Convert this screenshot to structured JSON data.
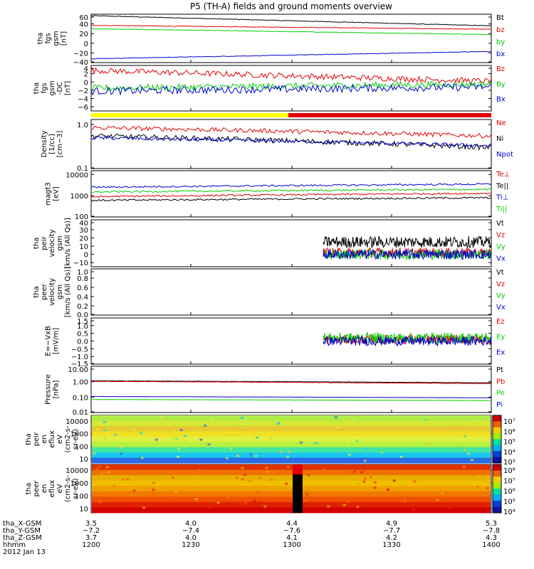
{
  "title": "P5 (TH-A) fields and ground moments overview",
  "colors": {
    "black": "#000000",
    "red": "#e00000",
    "green": "#00d000",
    "blue": "#0000d0",
    "yellow": "#ffff00",
    "white": "#ffffff"
  },
  "chart_data": [
    {
      "type": "line",
      "ylabel": [
        "tha",
        "fgs",
        "gsm",
        "[nT]"
      ],
      "yticks": [
        "60",
        "40",
        "20",
        "0",
        "−20",
        "−40"
      ],
      "ylim": [
        -40,
        60
      ],
      "series": [
        {
          "name": "Bt",
          "color": "black",
          "start": 57,
          "end": 36,
          "noise": 0.6
        },
        {
          "name": "bz",
          "color": "red",
          "start": 37,
          "end": 29,
          "noise": 0.6
        },
        {
          "name": "by",
          "color": "green",
          "start": 30,
          "end": 18,
          "noise": 0.6
        },
        {
          "name": "bx",
          "color": "blue",
          "start": -32,
          "end": -17,
          "noise": 0.6
        }
      ]
    },
    {
      "type": "line",
      "ylabel": [
        "tha",
        "fgs",
        "gsm",
        "-DC",
        "[nT]"
      ],
      "yticks": [
        "4",
        "2",
        "0",
        "−2",
        "−4",
        "−6"
      ],
      "ylim": [
        -7,
        4
      ],
      "series": [
        {
          "name": "Bz",
          "color": "red",
          "start": 2.8,
          "end": 0.2,
          "noise": 0.7
        },
        {
          "name": "By",
          "color": "green",
          "start": -1.5,
          "end": -0.5,
          "noise": 0.8
        },
        {
          "name": "Bx",
          "color": "blue",
          "start": -2.2,
          "end": -1.2,
          "noise": 0.9
        }
      ]
    },
    {
      "type": "line",
      "scale": "log",
      "ylabel": [
        "Density",
        "[1/cc]",
        "[cm−3]"
      ],
      "yticks": [
        "1.0",
        "0.1"
      ],
      "ylim": [
        0.1,
        1.3
      ],
      "series": [
        {
          "name": "Ne",
          "color": "red",
          "start": 0.85,
          "end": 0.55,
          "noise": 0.05
        },
        {
          "name": "Ni",
          "color": "black",
          "start": 0.55,
          "end": 0.3,
          "noise": 0.06
        },
        {
          "name": "Npot",
          "color": "blue",
          "start": 0.5,
          "end": 0.33,
          "noise": 0.04
        }
      ]
    },
    {
      "type": "line",
      "scale": "log",
      "ylabel": [
        "magt3",
        "[eV]"
      ],
      "yticks": [
        "10000",
        "1000",
        "100"
      ],
      "ylim": [
        100,
        15000
      ],
      "series": [
        {
          "name": "Te⊥",
          "color": "red",
          "start": 900,
          "end": 1300,
          "noise": 0.04
        },
        {
          "name": "Te||",
          "color": "black",
          "start": 600,
          "end": 800,
          "noise": 0.04
        },
        {
          "name": "Ti⊥",
          "color": "blue",
          "start": 2500,
          "end": 3500,
          "noise": 0.04
        },
        {
          "name": "Ti||",
          "color": "green",
          "start": 1500,
          "end": 2000,
          "noise": 0.04
        }
      ]
    },
    {
      "type": "line",
      "ylabel": [
        "tha",
        "peir",
        "velocity",
        "gsm",
        "[km/s (All Qs)]"
      ],
      "yticks": [
        "40",
        "30",
        "20",
        "10",
        "0",
        "−10"
      ],
      "ylim": [
        -15,
        42
      ],
      "start_frac": 0.58,
      "series": [
        {
          "name": "Vt",
          "color": "black",
          "start": 15,
          "end": 15,
          "noise": 7
        },
        {
          "name": "Vz",
          "color": "red",
          "start": 2,
          "end": 2,
          "noise": 6
        },
        {
          "name": "Vy",
          "color": "green",
          "start": 0,
          "end": 0,
          "noise": 6
        },
        {
          "name": "Vx",
          "color": "blue",
          "start": 0,
          "end": 0,
          "noise": 6
        }
      ]
    },
    {
      "type": "line",
      "ylabel": [
        "tha",
        "peer",
        "velocity",
        "gsm",
        "[km/s (All Qs)]"
      ],
      "yticks": [
        "1.0",
        "0.8",
        "0.6",
        "0.4",
        "0.2",
        "0.0"
      ],
      "ylim": [
        0,
        1
      ],
      "series": [
        {
          "name": "Vt",
          "color": "black"
        },
        {
          "name": "Vz",
          "color": "red"
        },
        {
          "name": "Vy",
          "color": "green"
        },
        {
          "name": "Vx",
          "color": "blue"
        }
      ]
    },
    {
      "type": "line",
      "ylabel": [
        "E=−VxB",
        "[mV/m]"
      ],
      "yticks": [
        "1.5",
        "1.0",
        "0.5",
        "0.0",
        "−0.5",
        "−1.0",
        "−1.5"
      ],
      "ylim": [
        -1.5,
        1.5
      ],
      "start_frac": 0.58,
      "series": [
        {
          "name": "Ez",
          "color": "red",
          "start": 0.1,
          "end": 0.1,
          "noise": 0.3
        },
        {
          "name": "Ey",
          "color": "green",
          "start": 0.2,
          "end": 0.2,
          "noise": 0.35
        },
        {
          "name": "Ex",
          "color": "blue",
          "start": 0,
          "end": 0,
          "noise": 0.3
        }
      ]
    },
    {
      "type": "line",
      "scale": "log",
      "ylabel": [
        "Pressure",
        "[nPa]"
      ],
      "yticks": [
        "10.00",
        "1.00",
        "0.10",
        "0.01"
      ],
      "ylim": [
        0.01,
        10
      ],
      "series": [
        {
          "name": "Pt",
          "color": "black",
          "start": 1.15,
          "end": 0.85,
          "noise": 0.01
        },
        {
          "name": "Pb",
          "color": "red",
          "start": 1.05,
          "end": 0.75,
          "noise": 0.01
        },
        {
          "name": "Pe",
          "color": "green",
          "start": 0.07,
          "end": 0.06,
          "noise": 0.005
        },
        {
          "name": "Pi",
          "color": "blue",
          "start": 0.11,
          "end": 0.09,
          "noise": 0.005
        }
      ]
    },
    {
      "type": "heatmap",
      "ylabel": [
        "tha",
        "peir",
        "en",
        "eflux",
        "eV",
        "(cm2-s-",
        "sr-eV)"
      ],
      "yticks": [
        "10000",
        "1000",
        "100",
        "10"
      ],
      "colorbar": [
        "10⁷",
        "10⁶",
        "10⁵",
        "10⁴",
        "10³"
      ]
    },
    {
      "type": "heatmap",
      "ylabel": [
        "tha",
        "peer",
        "en",
        "eflux",
        "eV",
        "(cm2-s-",
        "sr-eV)"
      ],
      "yticks": [
        "10000",
        "1000",
        "100",
        "10"
      ],
      "colorbar": [
        "10⁸",
        "10⁷",
        "10⁶",
        "10⁵",
        "10⁴"
      ]
    }
  ],
  "xaxis": {
    "rows": [
      {
        "label": "tha_X-GSM",
        "values": [
          "3.5",
          "4.0",
          "4.4",
          "4.9",
          "5.3"
        ]
      },
      {
        "label": "tha_Y-GSM",
        "values": [
          "−7.2",
          "−7.4",
          "−7.6",
          "−7.7",
          "−7.8"
        ]
      },
      {
        "label": "tha_Z-GSM",
        "values": [
          "3.7",
          "4.0",
          "4.1",
          "4.2",
          "4.3"
        ]
      },
      {
        "label": "hhmm",
        "values": [
          "1200",
          "1230",
          "1300",
          "1330",
          "1400"
        ]
      }
    ],
    "date": "2012 Jan 13"
  }
}
